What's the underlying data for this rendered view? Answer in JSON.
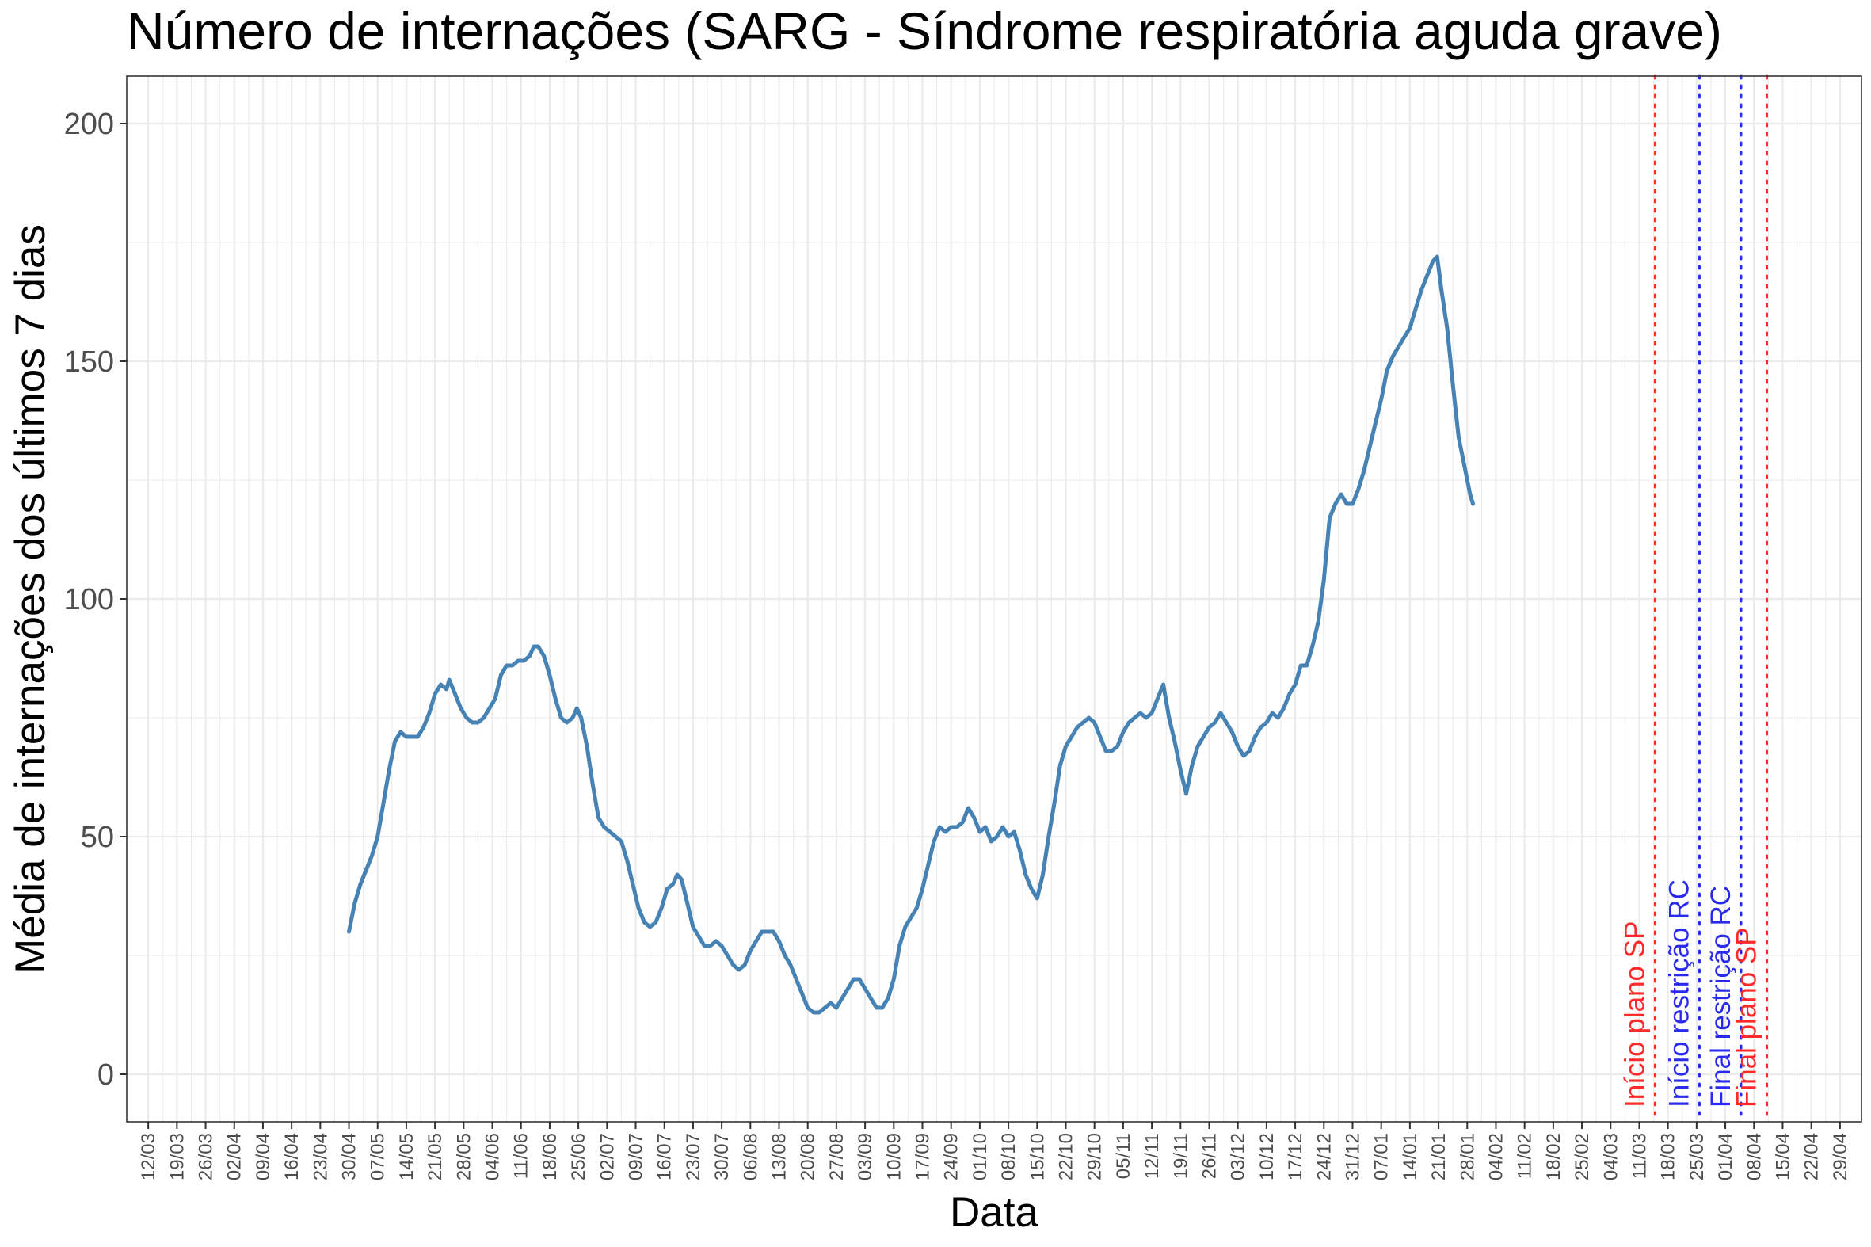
{
  "chart_data": {
    "type": "line",
    "title": "Número de internações (SARG - Síndrome respiratória aguda grave)",
    "xlabel": "Data",
    "ylabel": "Média de internações dos últimos 7 dias",
    "ylim": [
      -10,
      210
    ],
    "yticks": [
      0,
      50,
      100,
      150,
      200
    ],
    "grid": true,
    "x_tick_labels": [
      "12/03",
      "19/03",
      "26/03",
      "02/04",
      "09/04",
      "16/04",
      "23/04",
      "30/04",
      "07/05",
      "14/05",
      "21/05",
      "28/05",
      "04/06",
      "11/06",
      "18/06",
      "25/06",
      "02/07",
      "09/07",
      "16/07",
      "23/07",
      "30/07",
      "06/08",
      "13/08",
      "20/08",
      "27/08",
      "03/09",
      "10/09",
      "17/09",
      "24/09",
      "01/10",
      "08/10",
      "15/10",
      "22/10",
      "29/10",
      "05/11",
      "12/11",
      "19/11",
      "26/11",
      "03/12",
      "10/12",
      "17/12",
      "24/12",
      "31/12",
      "07/01",
      "14/01",
      "21/01",
      "28/01",
      "04/02",
      "11/02",
      "18/02",
      "25/02",
      "04/03",
      "11/03",
      "18/03",
      "25/03",
      "01/04",
      "08/04",
      "15/04",
      "22/04",
      "29/04"
    ],
    "series": [
      {
        "color": "#4682b4",
        "points": [
          [
            7.0,
            30
          ],
          [
            7.2,
            36
          ],
          [
            7.4,
            40
          ],
          [
            7.6,
            43
          ],
          [
            7.8,
            46
          ],
          [
            8.0,
            50
          ],
          [
            8.2,
            57
          ],
          [
            8.4,
            64
          ],
          [
            8.6,
            70
          ],
          [
            8.8,
            72
          ],
          [
            9.0,
            71
          ],
          [
            9.2,
            71
          ],
          [
            9.4,
            71
          ],
          [
            9.6,
            73
          ],
          [
            9.8,
            76
          ],
          [
            10.0,
            80
          ],
          [
            10.2,
            82
          ],
          [
            10.4,
            81
          ],
          [
            10.5,
            83
          ],
          [
            10.7,
            80
          ],
          [
            10.9,
            77
          ],
          [
            11.1,
            75
          ],
          [
            11.3,
            74
          ],
          [
            11.5,
            74
          ],
          [
            11.7,
            75
          ],
          [
            11.9,
            77
          ],
          [
            12.1,
            79
          ],
          [
            12.3,
            84
          ],
          [
            12.5,
            86
          ],
          [
            12.7,
            86
          ],
          [
            12.9,
            87
          ],
          [
            13.1,
            87
          ],
          [
            13.3,
            88
          ],
          [
            13.45,
            90
          ],
          [
            13.6,
            90
          ],
          [
            13.8,
            88
          ],
          [
            14.0,
            84
          ],
          [
            14.2,
            79
          ],
          [
            14.4,
            75
          ],
          [
            14.6,
            74
          ],
          [
            14.8,
            75
          ],
          [
            14.95,
            77
          ],
          [
            15.1,
            75
          ],
          [
            15.3,
            69
          ],
          [
            15.5,
            61
          ],
          [
            15.7,
            54
          ],
          [
            15.9,
            52
          ],
          [
            16.1,
            51
          ],
          [
            16.3,
            50
          ],
          [
            16.5,
            49
          ],
          [
            16.7,
            45
          ],
          [
            16.9,
            40
          ],
          [
            17.1,
            35
          ],
          [
            17.3,
            32
          ],
          [
            17.5,
            31
          ],
          [
            17.7,
            32
          ],
          [
            17.9,
            35
          ],
          [
            18.1,
            39
          ],
          [
            18.3,
            40
          ],
          [
            18.45,
            42
          ],
          [
            18.6,
            41
          ],
          [
            18.8,
            36
          ],
          [
            19.0,
            31
          ],
          [
            19.2,
            29
          ],
          [
            19.4,
            27
          ],
          [
            19.6,
            27
          ],
          [
            19.8,
            28
          ],
          [
            20.0,
            27
          ],
          [
            20.2,
            25
          ],
          [
            20.4,
            23
          ],
          [
            20.6,
            22
          ],
          [
            20.8,
            23
          ],
          [
            21.0,
            26
          ],
          [
            21.2,
            28
          ],
          [
            21.4,
            30
          ],
          [
            21.6,
            30
          ],
          [
            21.8,
            30
          ],
          [
            22.0,
            28
          ],
          [
            22.2,
            25
          ],
          [
            22.4,
            23
          ],
          [
            22.6,
            20
          ],
          [
            22.8,
            17
          ],
          [
            23.0,
            14
          ],
          [
            23.2,
            13
          ],
          [
            23.4,
            13
          ],
          [
            23.6,
            14
          ],
          [
            23.8,
            15
          ],
          [
            24.0,
            14
          ],
          [
            24.2,
            16
          ],
          [
            24.4,
            18
          ],
          [
            24.6,
            20
          ],
          [
            24.8,
            20
          ],
          [
            25.0,
            18
          ],
          [
            25.2,
            16
          ],
          [
            25.4,
            14
          ],
          [
            25.6,
            14
          ],
          [
            25.8,
            16
          ],
          [
            26.0,
            20
          ],
          [
            26.2,
            27
          ],
          [
            26.4,
            31
          ],
          [
            26.6,
            33
          ],
          [
            26.8,
            35
          ],
          [
            27.0,
            39
          ],
          [
            27.2,
            44
          ],
          [
            27.4,
            49
          ],
          [
            27.6,
            52
          ],
          [
            27.8,
            51
          ],
          [
            28.0,
            52
          ],
          [
            28.2,
            52
          ],
          [
            28.4,
            53
          ],
          [
            28.6,
            56
          ],
          [
            28.8,
            54
          ],
          [
            29.0,
            51
          ],
          [
            29.2,
            52
          ],
          [
            29.4,
            49
          ],
          [
            29.6,
            50
          ],
          [
            29.8,
            52
          ],
          [
            30.0,
            50
          ],
          [
            30.2,
            51
          ],
          [
            30.4,
            47
          ],
          [
            30.6,
            42
          ],
          [
            30.8,
            39
          ],
          [
            31.0,
            37
          ],
          [
            31.2,
            42
          ],
          [
            31.4,
            50
          ],
          [
            31.6,
            57
          ],
          [
            31.8,
            65
          ],
          [
            32.0,
            69
          ],
          [
            32.2,
            71
          ],
          [
            32.4,
            73
          ],
          [
            32.6,
            74
          ],
          [
            32.8,
            75
          ],
          [
            33.0,
            74
          ],
          [
            33.2,
            71
          ],
          [
            33.4,
            68
          ],
          [
            33.6,
            68
          ],
          [
            33.8,
            69
          ],
          [
            34.0,
            72
          ],
          [
            34.2,
            74
          ],
          [
            34.4,
            75
          ],
          [
            34.6,
            76
          ],
          [
            34.8,
            75
          ],
          [
            35.0,
            76
          ],
          [
            35.2,
            79
          ],
          [
            35.4,
            82
          ],
          [
            35.6,
            75
          ],
          [
            35.8,
            70
          ],
          [
            36.0,
            64
          ],
          [
            36.2,
            59
          ],
          [
            36.4,
            65
          ],
          [
            36.6,
            69
          ],
          [
            36.8,
            71
          ],
          [
            37.0,
            73
          ],
          [
            37.2,
            74
          ],
          [
            37.4,
            76
          ],
          [
            37.6,
            74
          ],
          [
            37.8,
            72
          ],
          [
            38.0,
            69
          ],
          [
            38.2,
            67
          ],
          [
            38.4,
            68
          ],
          [
            38.6,
            71
          ],
          [
            38.8,
            73
          ],
          [
            39.0,
            74
          ],
          [
            39.2,
            76
          ],
          [
            39.4,
            75
          ],
          [
            39.6,
            77
          ],
          [
            39.8,
            80
          ],
          [
            40.0,
            82
          ],
          [
            40.2,
            86
          ],
          [
            40.4,
            86
          ],
          [
            40.6,
            90
          ],
          [
            40.8,
            95
          ],
          [
            41.0,
            104
          ],
          [
            41.2,
            117
          ],
          [
            41.4,
            120
          ],
          [
            41.6,
            122
          ],
          [
            41.8,
            120
          ],
          [
            42.0,
            120
          ],
          [
            42.2,
            123
          ],
          [
            42.4,
            127
          ],
          [
            42.6,
            132
          ],
          [
            42.8,
            137
          ],
          [
            43.0,
            142
          ],
          [
            43.2,
            148
          ],
          [
            43.4,
            151
          ],
          [
            43.6,
            153
          ],
          [
            43.8,
            155
          ],
          [
            44.0,
            157
          ],
          [
            44.2,
            161
          ],
          [
            44.4,
            165
          ],
          [
            44.6,
            168
          ],
          [
            44.8,
            171
          ],
          [
            44.95,
            172
          ],
          [
            45.1,
            165
          ],
          [
            45.3,
            157
          ],
          [
            45.5,
            145
          ],
          [
            45.7,
            134
          ],
          [
            45.9,
            128
          ],
          [
            46.1,
            122
          ],
          [
            46.2,
            120
          ]
        ]
      }
    ],
    "vlines": [
      {
        "x": 52.55,
        "color": "#ff2a2a",
        "label": "Início plano SP"
      },
      {
        "x": 54.1,
        "color": "#2a2aee",
        "label": "Início restrição RC"
      },
      {
        "x": 55.55,
        "color": "#2a2aee",
        "label": "Final restrição RC"
      },
      {
        "x": 56.45,
        "color": "#ff2a2a",
        "label": "Final plano SP"
      }
    ]
  }
}
